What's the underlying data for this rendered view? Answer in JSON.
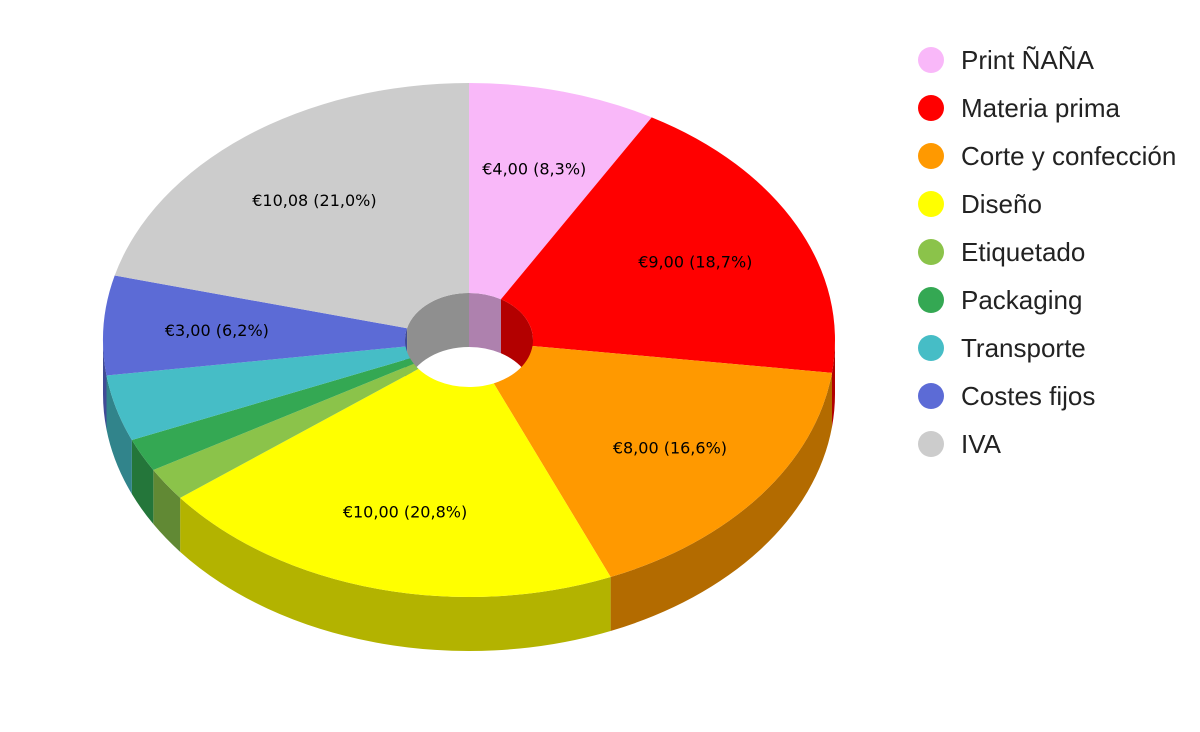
{
  "chart_data": {
    "type": "pie",
    "style": "3d-donut",
    "legend_position": "right",
    "currency": "€",
    "categories": [
      "Print ÑAÑA",
      "Materia prima",
      "Corte y confección",
      "Diseño",
      "Etiquetado",
      "Packaging",
      "Transporte",
      "Costes fijos",
      "IVA"
    ],
    "values": [
      4.0,
      9.0,
      8.0,
      10.0,
      1.0,
      1.0,
      2.0,
      3.0,
      10.08
    ],
    "colors": [
      "#f9b8f9",
      "#ff0000",
      "#ff9900",
      "#ffff00",
      "#8bc34a",
      "#34a853",
      "#46bdc6",
      "#5c6bd6",
      "#cccccc"
    ],
    "data_labels": [
      "€4,00 (8,3%)",
      "€9,00 (18,7%)",
      "€8,00 (16,6%)",
      "€10,00 (20,8%)",
      "",
      "",
      "",
      "€3,00 (6,2%)",
      "€10,08 (21,0%)"
    ]
  }
}
